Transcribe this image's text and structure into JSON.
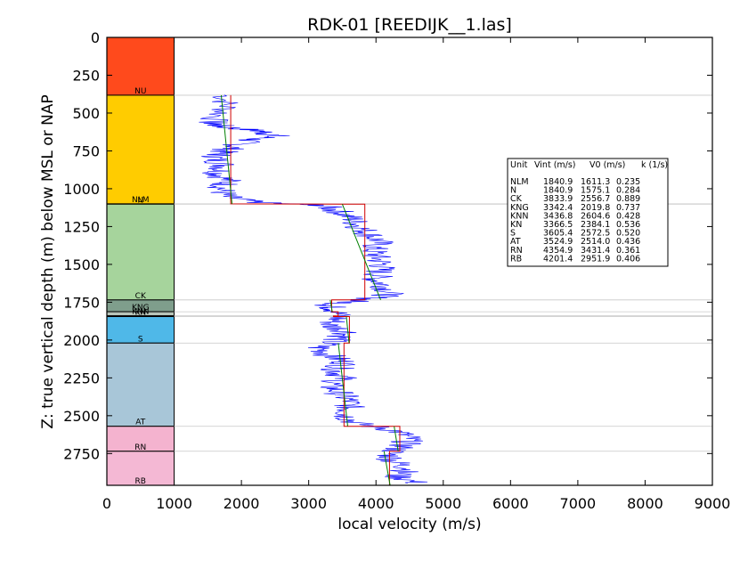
{
  "chart_data": {
    "type": "line",
    "title": "RDK-01 [REEDIJK__1.las]",
    "xlabel": "local velocity (m/s)",
    "ylabel": "Z: true vertical depth (m) below MSL or NAP",
    "xlim": [
      0,
      9000
    ],
    "ylim": [
      2960,
      0
    ],
    "x_ticks": [
      "0",
      "1000",
      "2000",
      "3000",
      "4000",
      "5000",
      "6000",
      "7000",
      "8000",
      "9000"
    ],
    "y_ticks": [
      "0",
      "250",
      "500",
      "750",
      "1000",
      "1250",
      "1500",
      "1750",
      "2000",
      "2250",
      "2500",
      "2750"
    ],
    "strat_column": {
      "x_range": [
        0,
        1000
      ],
      "units": [
        {
          "name": "NU",
          "top": 0,
          "base": 382,
          "color": "#ff4a1c"
        },
        {
          "name": "NLM",
          "top": 382,
          "base": 1100,
          "color": "#ffcc00"
        },
        {
          "name": "N",
          "top": 1100,
          "base": 1102,
          "color": "#ffcc00"
        },
        {
          "name": "CK",
          "top": 1102,
          "base": 1735,
          "color": "#a6d49c"
        },
        {
          "name": "KNG",
          "top": 1735,
          "base": 1813,
          "color": "#7f9e8c"
        },
        {
          "name": "KNN",
          "top": 1813,
          "base": 1840,
          "color": "#b7c4b8"
        },
        {
          "name": "KN",
          "top": 1840,
          "base": 1845,
          "color": "#b7c4b8"
        },
        {
          "name": "S",
          "top": 1845,
          "base": 2020,
          "color": "#4fb8e8"
        },
        {
          "name": "AT",
          "top": 2020,
          "base": 2570,
          "color": "#a8c6d8"
        },
        {
          "name": "RN",
          "top": 2570,
          "base": 2735,
          "color": "#f4b3cf"
        },
        {
          "name": "RB",
          "top": 2735,
          "base": 2960,
          "color": "#f4b8d4"
        }
      ]
    },
    "series": [
      {
        "name": "Vint",
        "color": "#d00000",
        "segments": [
          {
            "v": 1840.9,
            "top": 382,
            "base": 1100
          },
          {
            "v": 3833.9,
            "top": 1102,
            "base": 1735
          },
          {
            "v": 3342.4,
            "top": 1735,
            "base": 1813
          },
          {
            "v": 3436.8,
            "top": 1813,
            "base": 1840
          },
          {
            "v": 3366.5,
            "top": 1840,
            "base": 1845
          },
          {
            "v": 3605.4,
            "top": 1845,
            "base": 2020
          },
          {
            "v": 3524.9,
            "top": 2020,
            "base": 2570
          },
          {
            "v": 4354.9,
            "top": 2570,
            "base": 2735
          },
          {
            "v": 4201.4,
            "top": 2735,
            "base": 2960
          }
        ]
      },
      {
        "name": "V0 + k z",
        "color": "#008000",
        "segments": [
          {
            "x": [
              1700,
              1860
            ],
            "y": [
              382,
              1100
            ]
          },
          {
            "x": [
              3500,
              4070
            ],
            "y": [
              1102,
              1735
            ]
          },
          {
            "x": [
              3320,
              3350
            ],
            "y": [
              1735,
              1813
            ]
          },
          {
            "x": [
              3560,
              3600
            ],
            "y": [
              1845,
              2020
            ]
          },
          {
            "x": [
              3440,
              3580
            ],
            "y": [
              2020,
              2570
            ]
          },
          {
            "x": [
              4270,
              4330
            ],
            "y": [
              2570,
              2735
            ]
          },
          {
            "x": [
              4120,
              4210
            ],
            "y": [
              2735,
              2960
            ]
          }
        ]
      },
      {
        "name": "local velocity",
        "color": "#0000ff",
        "depth": [
          380,
          470,
          560,
          590,
          620,
          650,
          680,
          720,
          760,
          800,
          850,
          900,
          950,
          1000,
          1050,
          1090,
          1110,
          1150,
          1200,
          1250,
          1300,
          1350,
          1400,
          1450,
          1500,
          1550,
          1600,
          1650,
          1700,
          1735,
          1770,
          1800,
          1850,
          1900,
          1950,
          2000,
          2050,
          2100,
          2150,
          2200,
          2250,
          2300,
          2350,
          2400,
          2450,
          2500,
          2550,
          2600,
          2650,
          2700,
          2750,
          2800,
          2850,
          2900,
          2950
        ],
        "velocity": [
          1750,
          1780,
          1550,
          1700,
          2300,
          2500,
          2100,
          1900,
          1700,
          1600,
          1750,
          1650,
          1800,
          1700,
          1750,
          2200,
          3200,
          3450,
          3650,
          3750,
          3900,
          4050,
          3950,
          4000,
          4100,
          4050,
          4000,
          4150,
          4200,
          3800,
          3300,
          3400,
          3450,
          3300,
          3600,
          3400,
          3150,
          3300,
          3550,
          3400,
          3500,
          3300,
          3450,
          3600,
          3600,
          3550,
          3700,
          4300,
          4500,
          4400,
          4200,
          4250,
          4500,
          4300,
          4650
        ]
      }
    ],
    "info_box": {
      "header": [
        "Unit",
        "Vint (m/s)",
        "V0 (m/s)",
        "k (1/s)"
      ],
      "rows": [
        [
          "NLM",
          "1840.9",
          "1611.3",
          "0.235"
        ],
        [
          "N",
          "1840.9",
          "1575.1",
          "0.284"
        ],
        [
          "CK",
          "3833.9",
          "2556.7",
          "0.889"
        ],
        [
          "KNG",
          "3342.4",
          "2019.8",
          "0.737"
        ],
        [
          "KNN",
          "3436.8",
          "2604.6",
          "0.428"
        ],
        [
          "KN",
          "3366.5",
          "2384.1",
          "0.536"
        ],
        [
          "S",
          "3605.4",
          "2572.5",
          "0.520"
        ],
        [
          "AT",
          "3524.9",
          "2514.0",
          "0.436"
        ],
        [
          "RN",
          "4354.9",
          "3431.4",
          "0.361"
        ],
        [
          "RB",
          "4201.4",
          "2951.9",
          "0.406"
        ]
      ]
    },
    "grid": false,
    "legend": "none"
  }
}
